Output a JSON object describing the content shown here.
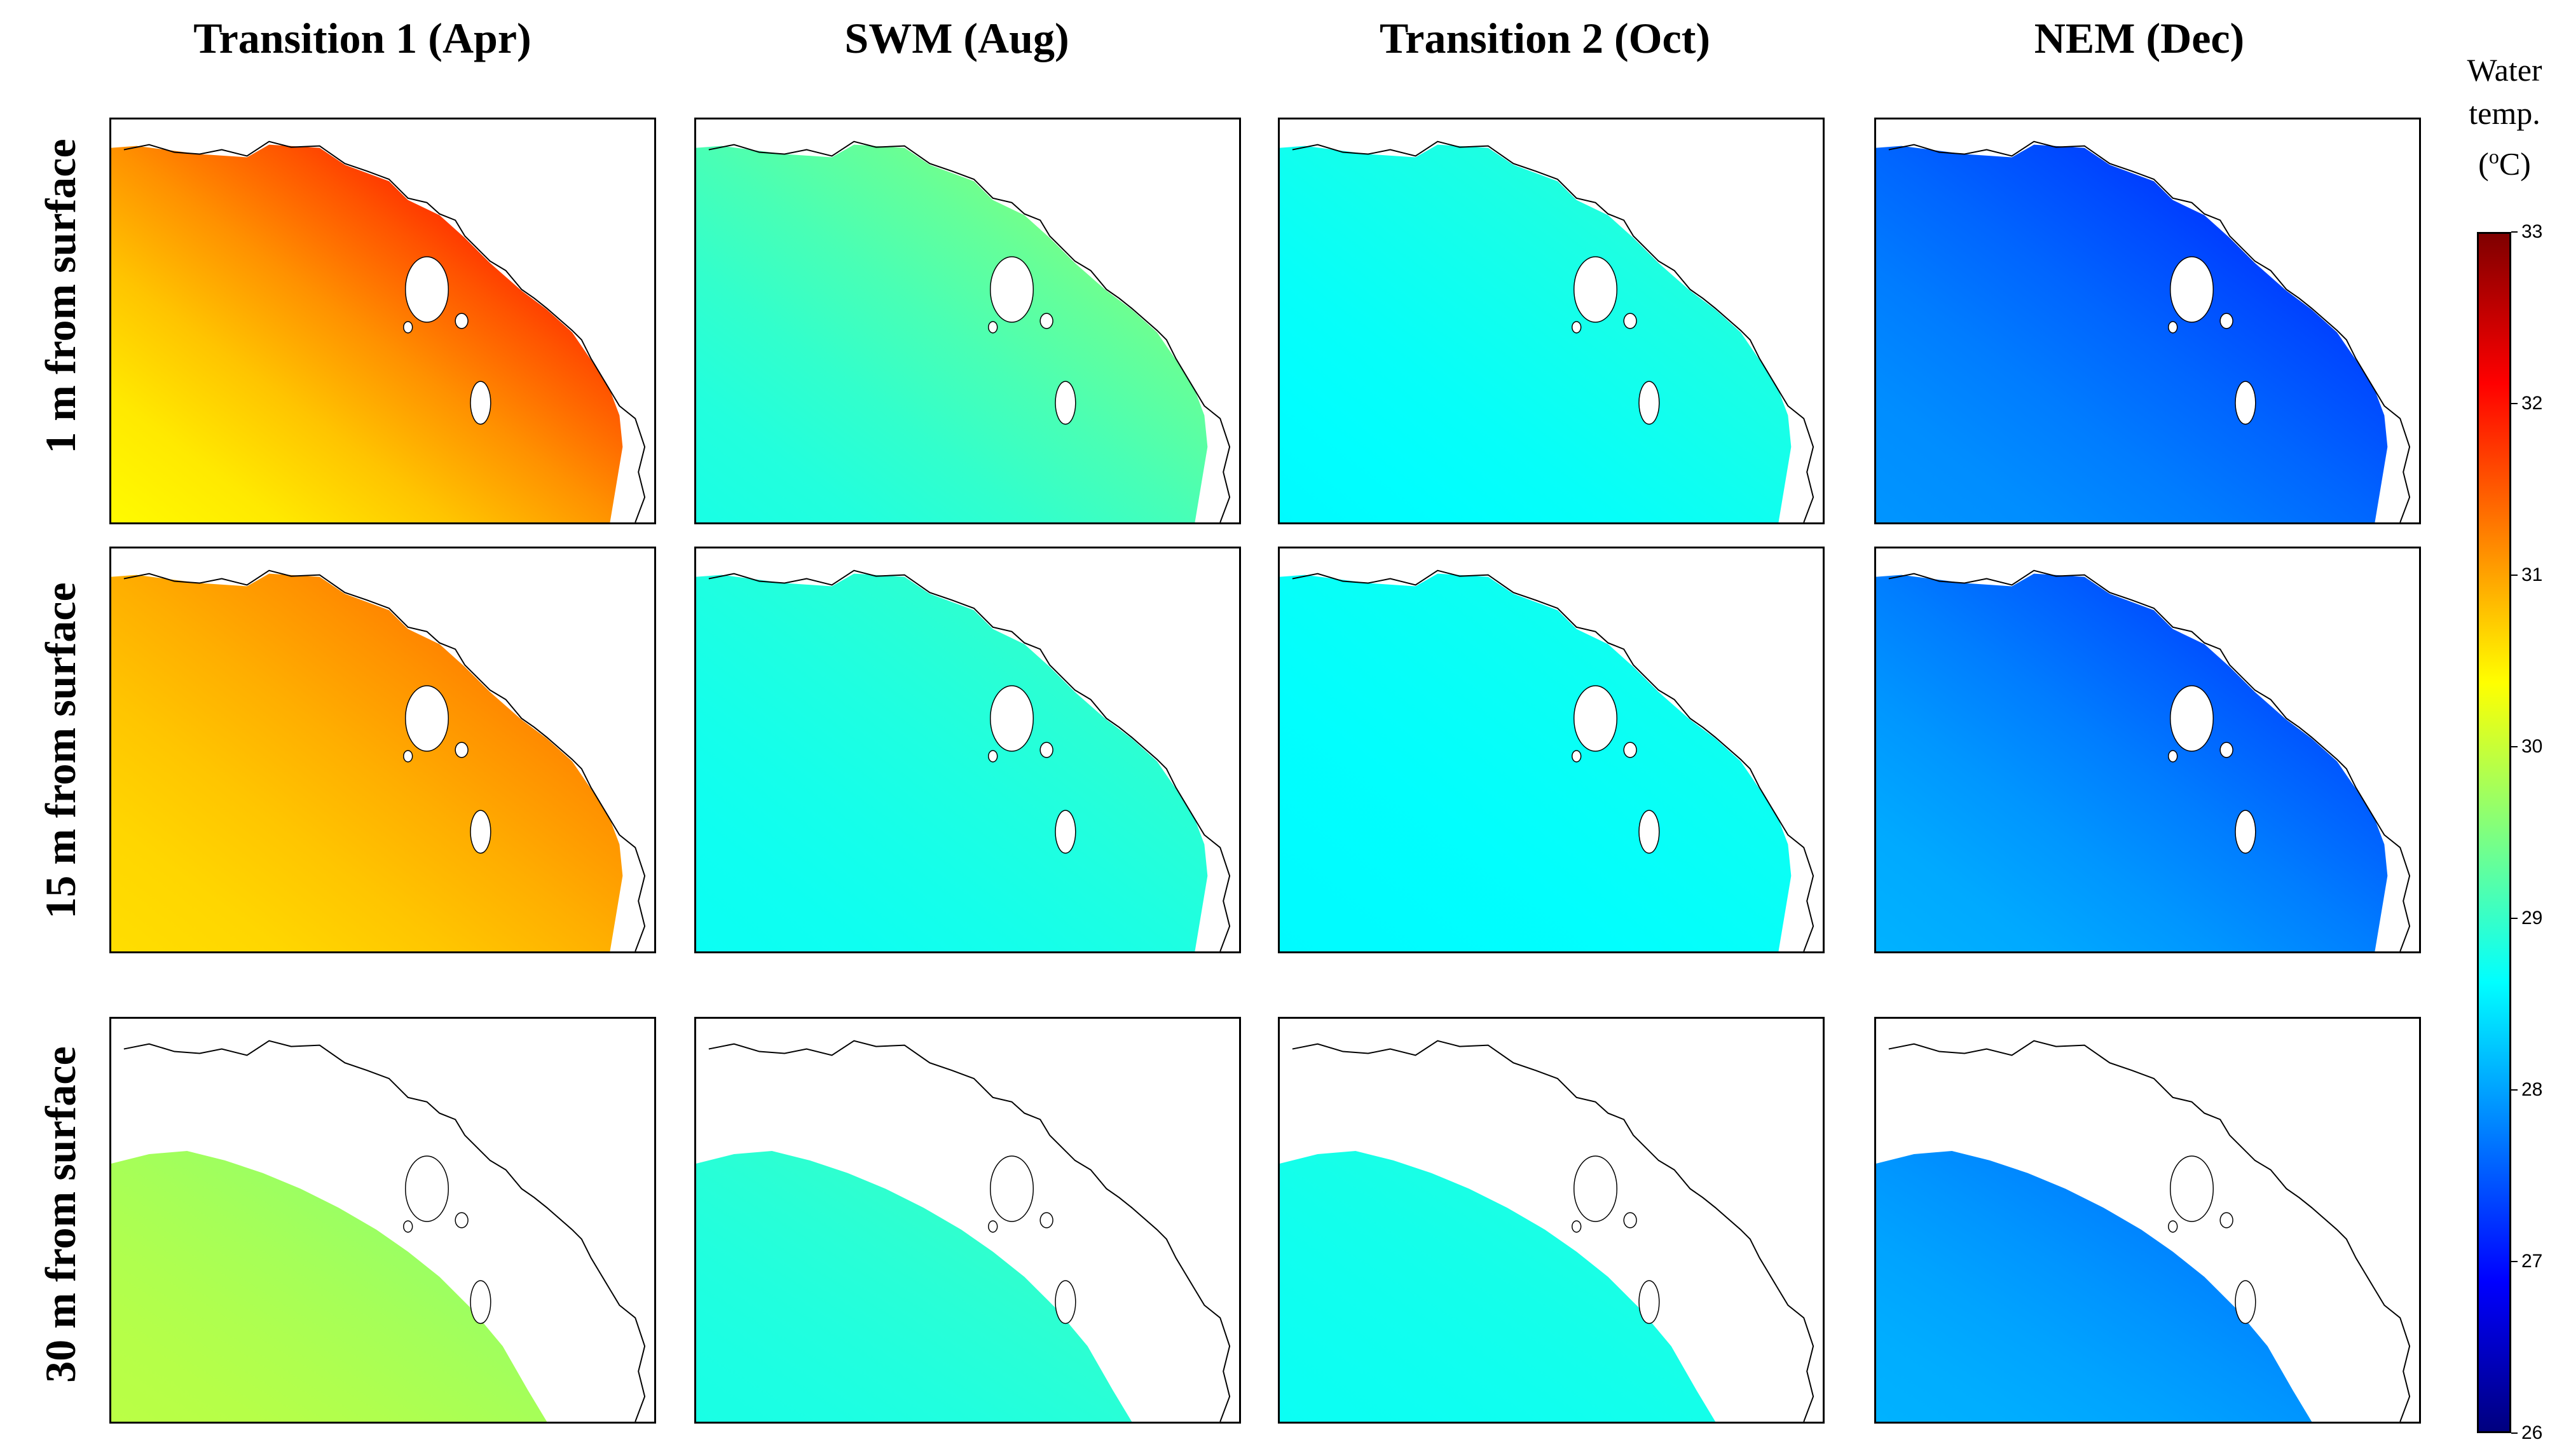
{
  "columns": [
    {
      "title": "Transition 1 (Apr)"
    },
    {
      "title": "SWM (Aug)"
    },
    {
      "title": "Transition 2 (Oct)"
    },
    {
      "title": "NEM (Dec)"
    }
  ],
  "rows": [
    {
      "label": "1 m from surface"
    },
    {
      "label": "15 m from surface"
    },
    {
      "label": "30 m from surface"
    }
  ],
  "colorbar": {
    "title_line1": "Water",
    "title_line2": "temp.",
    "title_unit_prefix": "(",
    "title_unit_sup": "o",
    "title_unit_suffix": "C)",
    "min": 26,
    "max": 33,
    "ticks": [
      "33",
      "32",
      "31",
      "30",
      "29",
      "28",
      "27",
      "26"
    ],
    "colors": [
      "#00007f",
      "#0000ff",
      "#007fff",
      "#00ffff",
      "#7fff7f",
      "#ffff00",
      "#ff7f00",
      "#ff0000",
      "#7f0000"
    ]
  },
  "fields": [
    [
      {
        "offshore": 30.4,
        "nearshore": 32.6
      },
      {
        "offshore": 28.8,
        "nearshore": 29.8
      },
      {
        "offshore": 28.6,
        "nearshore": 29.0
      },
      {
        "offshore": 27.9,
        "nearshore": 26.9
      }
    ],
    [
      {
        "offshore": 30.6,
        "nearshore": 31.6
      },
      {
        "offshore": 28.7,
        "nearshore": 29.1
      },
      {
        "offshore": 28.6,
        "nearshore": 28.8
      },
      {
        "offshore": 28.1,
        "nearshore": 27.0
      }
    ],
    [
      {
        "offshore": 29.9,
        "nearshore": 29.5
      },
      {
        "offshore": 28.8,
        "nearshore": 29.1
      },
      {
        "offshore": 28.7,
        "nearshore": 28.9
      },
      {
        "offshore": 28.1,
        "nearshore": 27.5
      }
    ]
  ]
}
